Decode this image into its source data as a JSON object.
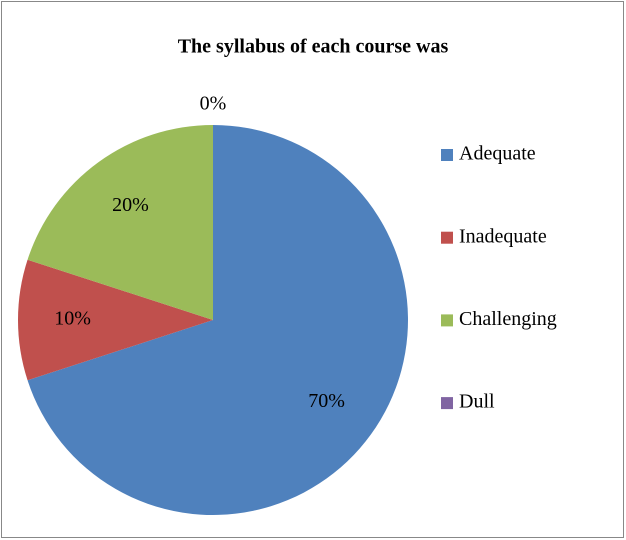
{
  "chart_data": {
    "type": "pie",
    "title": "The syllabus of each course was",
    "categories": [
      "Adequate",
      "Inadequate",
      "Challenging",
      "Dull"
    ],
    "values": [
      70,
      10,
      20,
      0
    ],
    "value_labels": [
      "70%",
      "10%",
      "20%",
      "0%"
    ],
    "colors": [
      "#4f81bd",
      "#c0504d",
      "#9bbb59",
      "#8064a2"
    ],
    "legend": "right"
  }
}
